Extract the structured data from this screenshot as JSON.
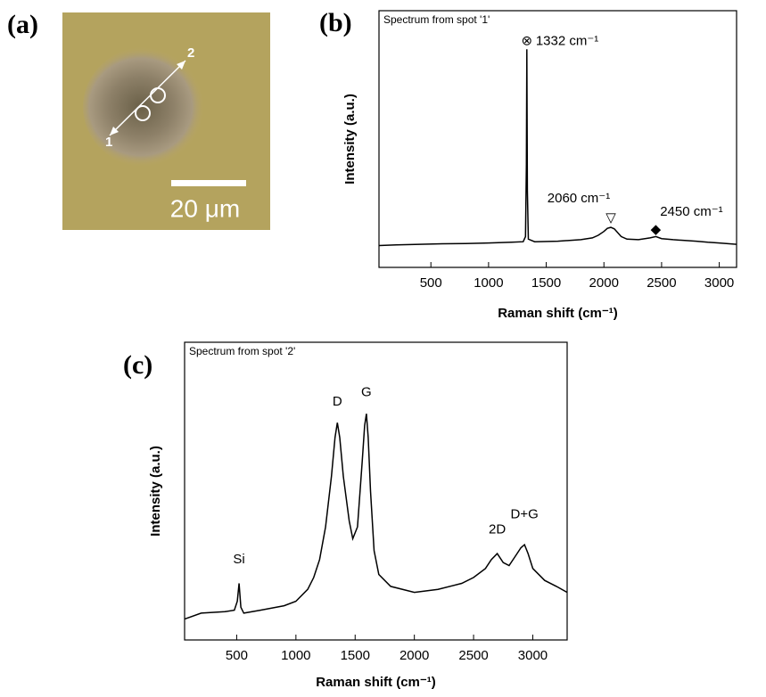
{
  "panel_a": {
    "label": "(a)",
    "spot_labels": [
      "1",
      "2"
    ],
    "scale_bar_label": "20 μm"
  },
  "chart_data": [
    {
      "type": "line",
      "panel_label": "(b)",
      "title": "Spectrum from spot '1'",
      "x_label": "Raman shift (cm⁻¹)",
      "y_label": "Intensity (a.u.)",
      "xlim": [
        50,
        3150
      ],
      "ylim": [
        0,
        100
      ],
      "xticks": [
        500,
        1000,
        1500,
        2000,
        2500,
        3000
      ],
      "color": "#000000",
      "x": [
        50,
        200,
        400,
        600,
        800,
        1000,
        1200,
        1300,
        1320,
        1328,
        1332,
        1336,
        1345,
        1400,
        1600,
        1800,
        1900,
        1950,
        2000,
        2030,
        2060,
        2090,
        2120,
        2150,
        2200,
        2300,
        2400,
        2450,
        2500,
        2600,
        2700,
        2800,
        2900,
        3000,
        3150
      ],
      "values": [
        8.5,
        8.8,
        9,
        9.2,
        9.3,
        9.5,
        9.8,
        10,
        12,
        40,
        85,
        30,
        11,
        10,
        10.2,
        10.8,
        11.5,
        12.5,
        14,
        15.2,
        15.6,
        15,
        13.5,
        12,
        11,
        10.8,
        11.5,
        12,
        11.2,
        10.8,
        10.5,
        10.2,
        9.8,
        9.5,
        9
      ],
      "annotations": [
        {
          "text": "1332 cm⁻¹",
          "symbol": "⊗",
          "x": 1332,
          "y": 88
        },
        {
          "text": "2060 cm⁻¹",
          "symbol": "▽",
          "x": 2060,
          "y": 19
        },
        {
          "text": "2450 cm⁻¹",
          "symbol": "◆",
          "x": 2450,
          "y": 14.5
        }
      ]
    },
    {
      "type": "line",
      "panel_label": "(c)",
      "title": "Spectrum from spot '2'",
      "x_label": "Raman shift (cm⁻¹)",
      "y_label": "Intensity (a.u.)",
      "xlim": [
        60,
        3290
      ],
      "ylim": [
        0,
        100
      ],
      "xticks": [
        500,
        1000,
        1500,
        2000,
        2500,
        3000
      ],
      "color": "#000000",
      "x": [
        60,
        200,
        400,
        480,
        505,
        520,
        535,
        560,
        700,
        900,
        1000,
        1100,
        1150,
        1200,
        1250,
        1300,
        1330,
        1350,
        1370,
        1400,
        1450,
        1480,
        1520,
        1560,
        1580,
        1595,
        1610,
        1630,
        1660,
        1700,
        1800,
        2000,
        2200,
        2400,
        2500,
        2600,
        2650,
        2700,
        2750,
        2800,
        2850,
        2900,
        2930,
        2960,
        3000,
        3100,
        3200,
        3290
      ],
      "values": [
        7,
        9,
        9.5,
        10,
        13,
        19,
        11,
        9,
        10,
        11.5,
        13,
        17,
        21,
        27,
        38,
        55,
        68,
        73,
        68,
        55,
        40,
        34,
        38,
        60,
        72,
        76,
        68,
        50,
        30,
        22,
        18,
        16,
        17,
        19,
        21,
        24,
        27,
        29,
        26,
        25,
        28,
        31,
        32,
        29,
        24,
        20,
        18,
        16
      ],
      "annotations": [
        {
          "text": "Si",
          "x": 520,
          "y": 27
        },
        {
          "text": "D",
          "x": 1350,
          "y": 80
        },
        {
          "text": "G",
          "x": 1595,
          "y": 83
        },
        {
          "text": "2D",
          "x": 2700,
          "y": 37
        },
        {
          "text": "D+G",
          "x": 2930,
          "y": 42
        }
      ]
    }
  ]
}
